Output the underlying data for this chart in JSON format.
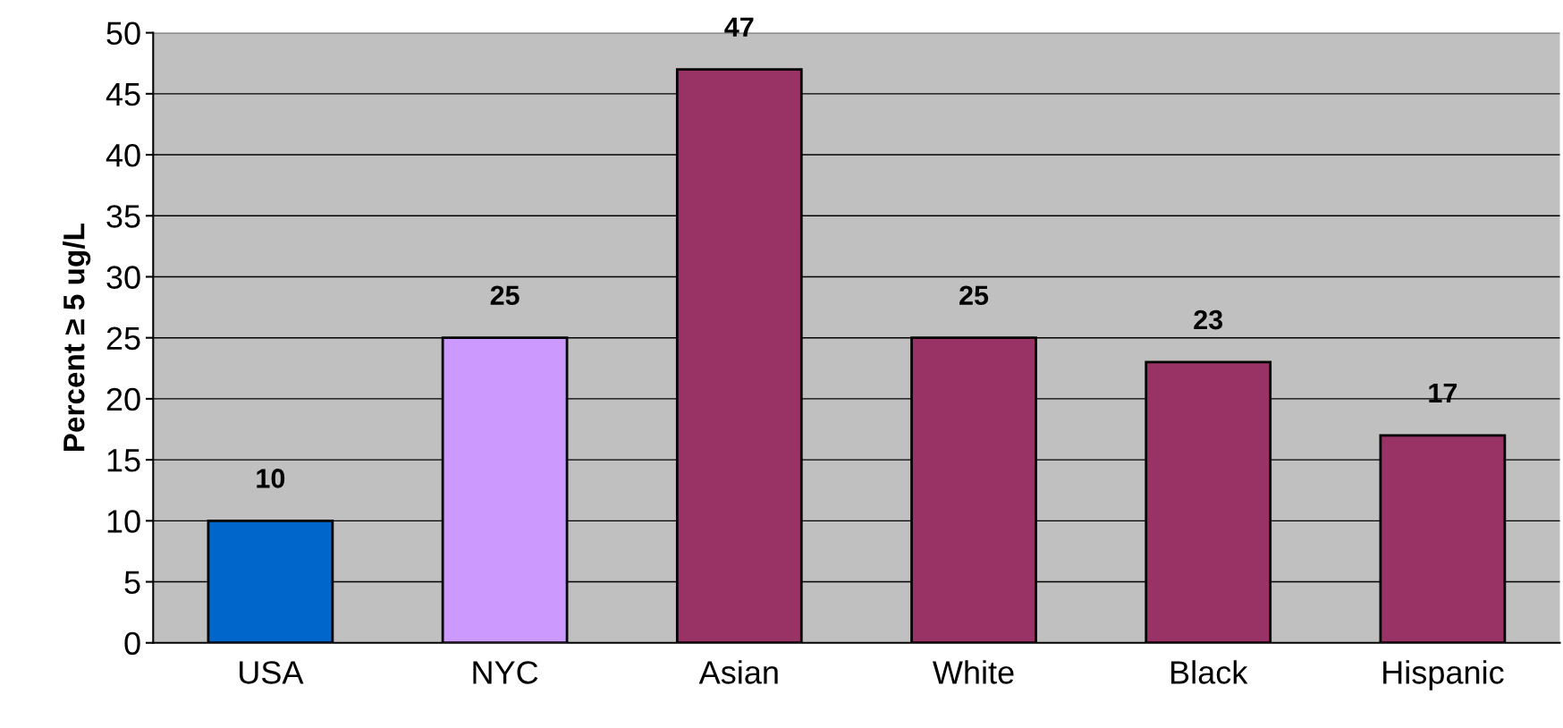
{
  "chart_data": {
    "type": "bar",
    "ylabel": "Percent ≥ 5 ug/L",
    "categories": [
      "USA",
      "NYC",
      "Asian",
      "White",
      "Black",
      "Hispanic"
    ],
    "values": [
      10,
      25,
      47,
      25,
      23,
      17
    ],
    "colors": [
      "#0066cc",
      "#cc99ff",
      "#993366",
      "#993366",
      "#993366",
      "#993366"
    ],
    "ylim": [
      0,
      50
    ],
    "yticks": [
      0,
      5,
      10,
      15,
      20,
      25,
      30,
      35,
      40,
      45,
      50
    ],
    "grid": "y",
    "data_labels": true
  }
}
